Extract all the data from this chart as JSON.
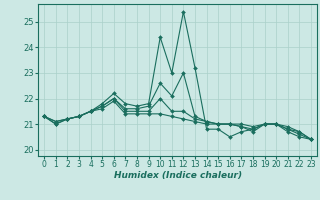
{
  "title": "",
  "xlabel": "Humidex (Indice chaleur)",
  "ylabel": "",
  "background_color": "#cce8e4",
  "grid_color": "#aad0ca",
  "line_color": "#1a6e5e",
  "xlim": [
    -0.5,
    23.5
  ],
  "ylim": [
    19.75,
    25.7
  ],
  "yticks": [
    20,
    21,
    22,
    23,
    24,
    25
  ],
  "xticks": [
    0,
    1,
    2,
    3,
    4,
    5,
    6,
    7,
    8,
    9,
    10,
    11,
    12,
    13,
    14,
    15,
    16,
    17,
    18,
    19,
    20,
    21,
    22,
    23
  ],
  "series": [
    [
      21.3,
      21.0,
      21.2,
      21.3,
      21.5,
      21.8,
      22.2,
      21.8,
      21.7,
      21.8,
      24.4,
      23.0,
      25.4,
      23.2,
      20.8,
      20.8,
      20.5,
      20.7,
      20.8,
      21.0,
      21.0,
      20.7,
      20.5,
      20.4
    ],
    [
      21.3,
      21.0,
      21.2,
      21.3,
      21.5,
      21.7,
      22.0,
      21.6,
      21.6,
      21.7,
      22.6,
      22.1,
      23.0,
      21.3,
      21.1,
      21.0,
      21.0,
      21.0,
      20.9,
      21.0,
      21.0,
      20.9,
      20.7,
      20.4
    ],
    [
      21.3,
      21.1,
      21.2,
      21.3,
      21.5,
      21.7,
      22.0,
      21.5,
      21.5,
      21.5,
      22.0,
      21.5,
      21.5,
      21.2,
      21.1,
      21.0,
      21.0,
      20.9,
      20.8,
      21.0,
      21.0,
      20.8,
      20.7,
      20.4
    ],
    [
      21.3,
      21.1,
      21.2,
      21.3,
      21.5,
      21.6,
      21.9,
      21.4,
      21.4,
      21.4,
      21.4,
      21.3,
      21.2,
      21.1,
      21.0,
      21.0,
      21.0,
      20.9,
      20.7,
      21.0,
      21.0,
      20.8,
      20.6,
      20.4
    ]
  ],
  "figsize": [
    3.2,
    2.0
  ],
  "dpi": 100
}
